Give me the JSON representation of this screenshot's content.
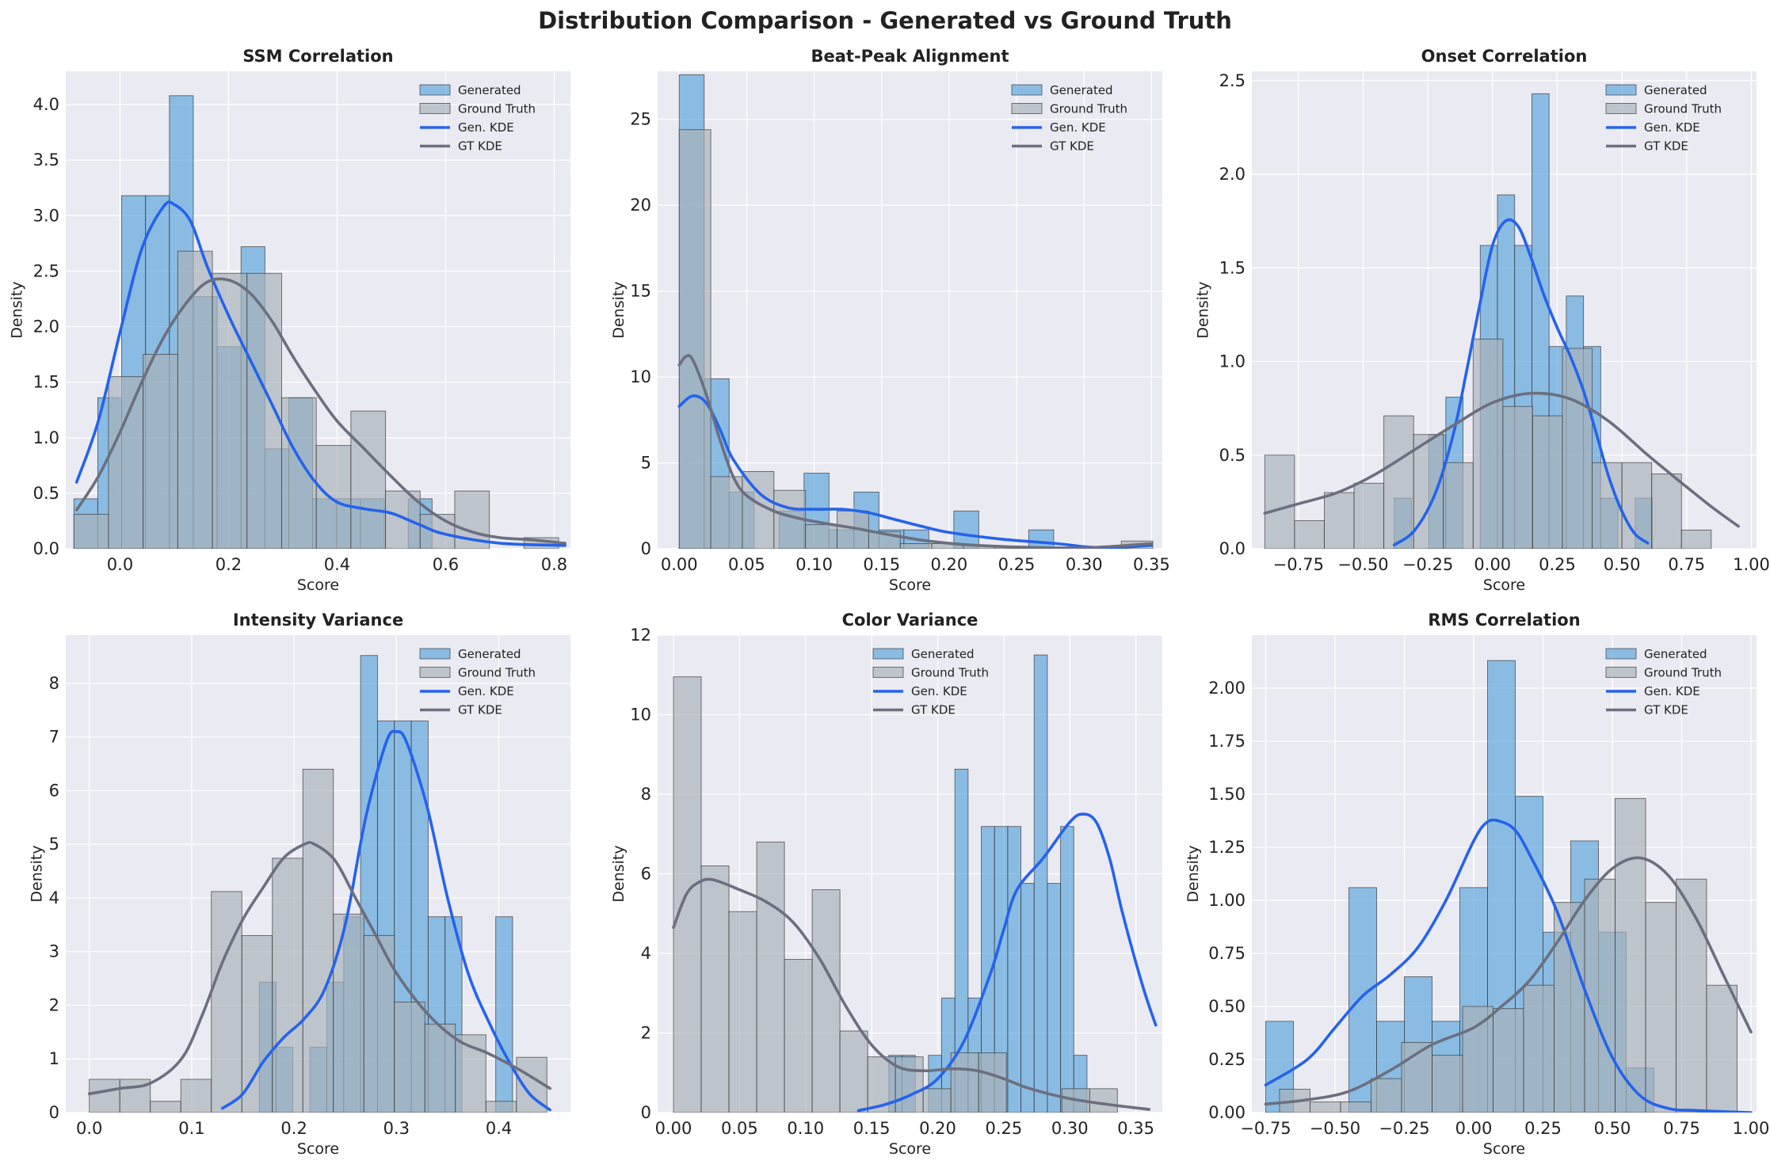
{
  "figure_title": "Distribution Comparison - Generated vs Ground Truth",
  "colors": {
    "generated_bar": "#5da5dc",
    "ground_truth_bar": "#a9b3b8",
    "generated_kde": "#2563eb",
    "ground_truth_kde": "#6b6f7e",
    "panel_bg": "#eaeaf2",
    "grid": "#ffffff"
  },
  "chart_data": [
    {
      "type": "bar",
      "title": "SSM Correlation",
      "xlabel": "Score",
      "ylabel": "Density",
      "xlim": [
        -0.1,
        0.83
      ],
      "ylim": [
        0,
        4.3
      ],
      "xticks": [
        0.0,
        0.2,
        0.4,
        0.6,
        0.8
      ],
      "xtick_labels": [
        "0.0",
        "0.2",
        "0.4",
        "0.6",
        "0.8"
      ],
      "yticks": [
        0.0,
        0.5,
        1.0,
        1.5,
        2.0,
        2.5,
        3.0,
        3.5,
        4.0
      ],
      "ytick_labels": [
        "0.0",
        "0.5",
        "1.0",
        "1.5",
        "2.0",
        "2.5",
        "3.0",
        "3.5",
        "4.0"
      ],
      "legend": [
        "Generated",
        "Ground Truth",
        "Gen. KDE",
        "GT KDE"
      ],
      "legend_position": "upper-right",
      "grid": true,
      "generated_bins": {
        "start": -0.085,
        "width": 0.044,
        "values": [
          0.45,
          1.36,
          3.18,
          3.18,
          4.08,
          2.27,
          1.82,
          2.72,
          0.9,
          1.36,
          0.45,
          0.45,
          0.45,
          0.0,
          0.45,
          0.0,
          0.0,
          0.0,
          0.0
        ]
      },
      "ground_truth_bins": {
        "start": -0.085,
        "width": 0.0638,
        "values": [
          0.31,
          1.55,
          1.75,
          2.68,
          2.48,
          2.48,
          1.36,
          0.93,
          1.24,
          0.52,
          0.31,
          0.52,
          0.0,
          0.1
        ]
      },
      "generated_kde": {
        "x": [
          -0.08,
          -0.04,
          0.0,
          0.04,
          0.08,
          0.1,
          0.13,
          0.16,
          0.2,
          0.24,
          0.28,
          0.32,
          0.36,
          0.4,
          0.45,
          0.5,
          0.55,
          0.6,
          0.7,
          0.82
        ],
        "y": [
          0.6,
          1.15,
          1.95,
          2.7,
          3.08,
          3.1,
          2.95,
          2.55,
          2.1,
          1.7,
          1.3,
          0.9,
          0.6,
          0.42,
          0.36,
          0.32,
          0.22,
          0.13,
          0.05,
          0.03
        ]
      },
      "ground_truth_kde": {
        "x": [
          -0.08,
          -0.04,
          0.0,
          0.04,
          0.08,
          0.12,
          0.16,
          0.2,
          0.24,
          0.28,
          0.32,
          0.36,
          0.4,
          0.45,
          0.5,
          0.55,
          0.6,
          0.65,
          0.7,
          0.76,
          0.82
        ],
        "y": [
          0.35,
          0.65,
          1.05,
          1.5,
          1.9,
          2.2,
          2.4,
          2.42,
          2.3,
          2.05,
          1.72,
          1.42,
          1.15,
          0.9,
          0.65,
          0.42,
          0.25,
          0.15,
          0.1,
          0.08,
          0.05
        ]
      }
    },
    {
      "type": "bar",
      "title": "Beat-Peak Alignment",
      "xlabel": "Score",
      "ylabel": "Density",
      "xlim": [
        -0.016,
        0.358
      ],
      "ylim": [
        0,
        27.8
      ],
      "xticks": [
        0.0,
        0.05,
        0.1,
        0.15,
        0.2,
        0.25,
        0.3,
        0.35
      ],
      "xtick_labels": [
        "0.00",
        "0.05",
        "0.10",
        "0.15",
        "0.20",
        "0.25",
        "0.30",
        "0.35"
      ],
      "yticks": [
        0,
        5,
        10,
        15,
        20,
        25
      ],
      "ytick_labels": [
        "0",
        "5",
        "10",
        "15",
        "20",
        "25"
      ],
      "legend": [
        "Generated",
        "Ground Truth",
        "Gen. KDE",
        "GT KDE"
      ],
      "legend_position": "upper-right",
      "grid": true,
      "generated_bins": {
        "start": 0.0,
        "width": 0.0185,
        "values": [
          27.6,
          9.9,
          3.3,
          0.0,
          2.2,
          4.4,
          1.1,
          3.3,
          1.1,
          1.1,
          0.0,
          2.2,
          0.0,
          0.0,
          1.1,
          0.0,
          0.0,
          0.0,
          0.0
        ]
      },
      "ground_truth_bins": {
        "start": 0.0,
        "width": 0.0234,
        "values": [
          24.4,
          4.2,
          4.5,
          3.4,
          1.4,
          2.2,
          1.0,
          0.3,
          0.3,
          0.2,
          0.1,
          0.1,
          0.1,
          0.0,
          0.45
        ]
      },
      "generated_kde": {
        "x": [
          0.0,
          0.01,
          0.02,
          0.03,
          0.04,
          0.06,
          0.08,
          0.1,
          0.12,
          0.14,
          0.16,
          0.18,
          0.2,
          0.24,
          0.28,
          0.3,
          0.32,
          0.35
        ],
        "y": [
          8.3,
          8.9,
          8.5,
          7.0,
          5.2,
          3.2,
          2.4,
          2.3,
          2.3,
          2.1,
          1.7,
          1.3,
          0.95,
          0.55,
          0.3,
          0.12,
          0.06,
          0.2
        ]
      },
      "ground_truth_kde": {
        "x": [
          0.0,
          0.005,
          0.01,
          0.02,
          0.03,
          0.04,
          0.05,
          0.07,
          0.09,
          0.11,
          0.13,
          0.15,
          0.18,
          0.21,
          0.25,
          0.3,
          0.35
        ],
        "y": [
          10.7,
          11.2,
          11.0,
          9.0,
          6.4,
          4.2,
          3.1,
          2.2,
          1.75,
          1.45,
          1.2,
          0.9,
          0.5,
          0.25,
          0.1,
          0.05,
          0.3
        ]
      }
    },
    {
      "type": "bar",
      "title": "Onset Correlation",
      "xlabel": "Score",
      "ylabel": "Density",
      "xlim": [
        -0.93,
        1.02
      ],
      "ylim": [
        0,
        2.55
      ],
      "xticks": [
        -0.75,
        -0.5,
        -0.25,
        0.0,
        0.25,
        0.5,
        0.75,
        1.0
      ],
      "xtick_labels": [
        "−0.75",
        "−0.50",
        "−0.25",
        "0.00",
        "0.25",
        "0.50",
        "0.75",
        "1.00"
      ],
      "yticks": [
        0.0,
        0.5,
        1.0,
        1.5,
        2.0,
        2.5
      ],
      "ytick_labels": [
        "0.0",
        "0.5",
        "1.0",
        "1.5",
        "2.0",
        "2.5"
      ],
      "legend": [
        "Generated",
        "Ground Truth",
        "Gen. KDE",
        "GT KDE"
      ],
      "legend_position": "upper-right",
      "grid": true,
      "generated_bins": {
        "start": -0.38,
        "width": 0.0665,
        "values": [
          0.27,
          0.0,
          0.61,
          0.81,
          0.0,
          1.62,
          1.89,
          1.62,
          2.43,
          1.08,
          1.35,
          1.08,
          0.27,
          0.0,
          0.27
        ]
      },
      "ground_truth_bins": {
        "start": -0.88,
        "width": 0.115,
        "values": [
          0.5,
          0.15,
          0.3,
          0.35,
          0.71,
          0.61,
          0.46,
          1.12,
          0.76,
          0.71,
          1.07,
          0.46,
          0.46,
          0.4,
          0.1
        ]
      },
      "generated_kde": {
        "x": [
          -0.38,
          -0.3,
          -0.22,
          -0.15,
          -0.1,
          -0.05,
          0.0,
          0.05,
          0.1,
          0.15,
          0.2,
          0.25,
          0.3,
          0.35,
          0.4,
          0.45,
          0.5,
          0.55,
          0.6
        ],
        "y": [
          0.02,
          0.1,
          0.3,
          0.62,
          0.95,
          1.3,
          1.62,
          1.75,
          1.72,
          1.55,
          1.35,
          1.18,
          1.03,
          0.85,
          0.62,
          0.38,
          0.2,
          0.08,
          0.03
        ]
      },
      "ground_truth_kde": {
        "x": [
          -0.88,
          -0.75,
          -0.6,
          -0.45,
          -0.3,
          -0.15,
          0.0,
          0.15,
          0.3,
          0.45,
          0.6,
          0.75,
          0.85,
          0.95
        ],
        "y": [
          0.19,
          0.24,
          0.3,
          0.4,
          0.53,
          0.66,
          0.78,
          0.83,
          0.8,
          0.68,
          0.5,
          0.33,
          0.22,
          0.12
        ]
      }
    },
    {
      "type": "bar",
      "title": "Intensity Variance",
      "xlabel": "Score",
      "ylabel": "Density",
      "xlim": [
        -0.023,
        0.47
      ],
      "ylim": [
        0,
        8.9
      ],
      "xticks": [
        0.0,
        0.1,
        0.2,
        0.3,
        0.4
      ],
      "xtick_labels": [
        "0.0",
        "0.1",
        "0.2",
        "0.3",
        "0.4"
      ],
      "yticks": [
        0,
        1,
        2,
        3,
        4,
        5,
        6,
        7,
        8
      ],
      "ytick_labels": [
        "0",
        "1",
        "2",
        "3",
        "4",
        "5",
        "6",
        "7",
        "8"
      ],
      "legend": [
        "Generated",
        "Ground Truth",
        "Gen. KDE",
        "GT KDE"
      ],
      "legend_position": "upper-right",
      "grid": true,
      "generated_bins": {
        "start": 0.166,
        "width": 0.0165,
        "values": [
          2.43,
          1.22,
          0.0,
          1.22,
          2.43,
          3.65,
          8.52,
          7.3,
          7.3,
          7.3,
          3.65,
          3.65,
          0.0,
          0.0,
          3.65,
          0.0
        ]
      },
      "ground_truth_bins": {
        "start": 0.0,
        "width": 0.0298,
        "values": [
          0.62,
          0.62,
          0.21,
          0.62,
          4.12,
          3.3,
          4.74,
          6.4,
          3.7,
          3.3,
          2.06,
          1.65,
          1.45,
          0.21,
          1.03
        ]
      },
      "generated_kde": {
        "x": [
          0.13,
          0.15,
          0.17,
          0.19,
          0.21,
          0.23,
          0.25,
          0.27,
          0.29,
          0.3,
          0.31,
          0.33,
          0.35,
          0.37,
          0.39,
          0.41,
          0.43,
          0.45
        ],
        "y": [
          0.08,
          0.35,
          0.95,
          1.4,
          1.75,
          2.3,
          3.5,
          5.5,
          6.9,
          7.1,
          6.9,
          5.7,
          4.0,
          2.6,
          1.7,
          0.95,
          0.35,
          0.05
        ]
      },
      "ground_truth_kde": {
        "x": [
          0.0,
          0.03,
          0.06,
          0.09,
          0.11,
          0.13,
          0.15,
          0.17,
          0.19,
          0.21,
          0.22,
          0.24,
          0.26,
          0.28,
          0.3,
          0.33,
          0.36,
          0.39,
          0.42,
          0.45
        ],
        "y": [
          0.35,
          0.45,
          0.55,
          1.0,
          1.8,
          2.8,
          3.6,
          4.2,
          4.75,
          5.0,
          5.0,
          4.7,
          4.0,
          3.3,
          2.6,
          1.85,
          1.35,
          1.1,
          0.8,
          0.45
        ]
      }
    },
    {
      "type": "bar",
      "title": "Color Variance",
      "xlabel": "Score",
      "ylabel": "Density",
      "xlim": [
        -0.012,
        0.37
      ],
      "ylim": [
        0,
        12.0
      ],
      "xticks": [
        0.0,
        0.05,
        0.1,
        0.15,
        0.2,
        0.25,
        0.3,
        0.35
      ],
      "xtick_labels": [
        "0.00",
        "0.05",
        "0.10",
        "0.15",
        "0.20",
        "0.25",
        "0.30",
        "0.35"
      ],
      "yticks": [
        0,
        2,
        4,
        6,
        8,
        10,
        12
      ],
      "ytick_labels": [
        "0",
        "2",
        "4",
        "6",
        "8",
        "10",
        "12"
      ],
      "legend": [
        "Generated",
        "Ground Truth",
        "Gen. KDE",
        "GT KDE"
      ],
      "legend_position": "upper-center",
      "grid": true,
      "generated_bins": {
        "start": 0.163,
        "width": 0.01,
        "values": [
          1.44,
          1.44,
          0.0,
          1.44,
          2.88,
          8.63,
          2.88,
          7.19,
          7.19,
          7.19,
          5.76,
          11.5,
          5.76,
          7.19,
          1.44
        ]
      },
      "ground_truth_bins": {
        "start": 0.0,
        "width": 0.021,
        "values": [
          10.95,
          6.2,
          5.05,
          6.8,
          3.85,
          5.6,
          2.05,
          1.4,
          1.4,
          0.6,
          1.5,
          1.5,
          0.0,
          0.0,
          0.6,
          0.6
        ]
      },
      "generated_kde": {
        "x": [
          0.14,
          0.16,
          0.18,
          0.2,
          0.22,
          0.24,
          0.25,
          0.26,
          0.28,
          0.3,
          0.31,
          0.32,
          0.33,
          0.34,
          0.355,
          0.365
        ],
        "y": [
          0.05,
          0.2,
          0.45,
          0.85,
          1.8,
          3.5,
          4.6,
          5.6,
          6.4,
          7.3,
          7.5,
          7.3,
          6.4,
          5.0,
          3.2,
          2.2
        ]
      },
      "ground_truth_kde": {
        "x": [
          0.0,
          0.01,
          0.02,
          0.03,
          0.05,
          0.07,
          0.09,
          0.11,
          0.13,
          0.15,
          0.17,
          0.19,
          0.21,
          0.23,
          0.25,
          0.27,
          0.3,
          0.33,
          0.36
        ],
        "y": [
          4.65,
          5.5,
          5.8,
          5.85,
          5.6,
          5.3,
          4.8,
          3.9,
          2.7,
          1.7,
          1.15,
          1.05,
          1.1,
          1.05,
          0.85,
          0.6,
          0.35,
          0.2,
          0.08
        ]
      }
    },
    {
      "type": "bar",
      "title": "RMS Correlation",
      "xlabel": "Score",
      "ylabel": "Density",
      "xlim": [
        -0.8,
        1.02
      ],
      "ylim": [
        0,
        2.25
      ],
      "xticks": [
        -0.75,
        -0.5,
        -0.25,
        0.0,
        0.25,
        0.5,
        0.75,
        1.0
      ],
      "xtick_labels": [
        "−0.75",
        "−0.50",
        "−0.25",
        "0.00",
        "0.25",
        "0.50",
        "0.75",
        "1.00"
      ],
      "yticks": [
        0.0,
        0.25,
        0.5,
        0.75,
        1.0,
        1.25,
        1.5,
        1.75,
        2.0
      ],
      "ytick_labels": [
        "0.00",
        "0.25",
        "0.50",
        "0.75",
        "1.00",
        "1.25",
        "1.50",
        "1.75",
        "2.00"
      ],
      "legend": [
        "Generated",
        "Ground Truth",
        "Gen. KDE",
        "GT KDE"
      ],
      "legend_position": "upper-right",
      "grid": true,
      "generated_bins": {
        "start": -0.75,
        "width": 0.1,
        "values": [
          0.43,
          0.0,
          0.0,
          1.06,
          0.43,
          0.64,
          0.43,
          1.06,
          2.13,
          1.49,
          0.85,
          1.28,
          0.85,
          0.21
        ]
      },
      "ground_truth_bins": {
        "start": -0.7,
        "width": 0.11,
        "values": [
          0.11,
          0.05,
          0.05,
          0.16,
          0.33,
          0.27,
          0.5,
          0.49,
          0.6,
          0.99,
          1.1,
          1.48,
          0.99,
          1.1,
          0.6
        ]
      },
      "generated_kde": {
        "x": [
          -0.75,
          -0.6,
          -0.5,
          -0.4,
          -0.3,
          -0.2,
          -0.1,
          0.0,
          0.05,
          0.1,
          0.15,
          0.2,
          0.3,
          0.4,
          0.5,
          0.6,
          0.7,
          0.8,
          1.0
        ],
        "y": [
          0.13,
          0.25,
          0.4,
          0.55,
          0.65,
          0.78,
          1.0,
          1.28,
          1.37,
          1.37,
          1.33,
          1.22,
          0.95,
          0.58,
          0.26,
          0.08,
          0.02,
          0.01,
          0.0
        ]
      },
      "ground_truth_kde": {
        "x": [
          -0.75,
          -0.6,
          -0.45,
          -0.3,
          -0.15,
          0.0,
          0.1,
          0.2,
          0.3,
          0.4,
          0.5,
          0.6,
          0.7,
          0.8,
          0.9,
          1.0
        ],
        "y": [
          0.04,
          0.06,
          0.1,
          0.2,
          0.32,
          0.4,
          0.5,
          0.62,
          0.8,
          1.0,
          1.15,
          1.2,
          1.12,
          0.92,
          0.65,
          0.38
        ]
      }
    }
  ]
}
